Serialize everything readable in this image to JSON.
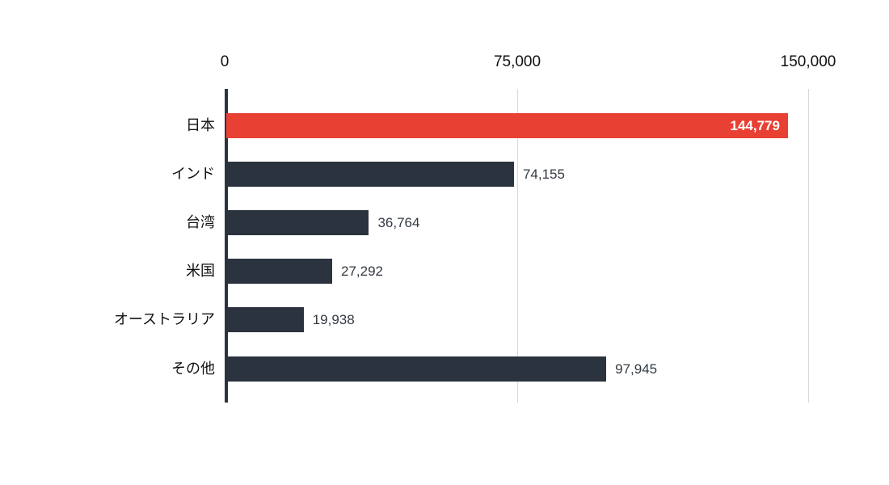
{
  "chart_data": {
    "type": "bar",
    "orientation": "horizontal",
    "title": "",
    "categories": [
      "日本",
      "インド",
      "台湾",
      "米国",
      "オーストラリア",
      "その他"
    ],
    "values": [
      144779,
      74155,
      36764,
      27292,
      19938,
      97945
    ],
    "value_labels": [
      "144,779",
      "74,155",
      "36,764",
      "27,292",
      "19,938",
      "97,945"
    ],
    "highlight_index": 0,
    "xlim": [
      0,
      150000
    ],
    "x_axis_position": "top",
    "x_ticks": [
      {
        "value": 0,
        "label": "0"
      },
      {
        "value": 75000,
        "label": "75,000"
      },
      {
        "value": 150000,
        "label": "150,000"
      }
    ],
    "grid": true,
    "legend": "none",
    "colors": {
      "highlight_bar": "#e94034",
      "bar": "#2b333e",
      "highlight_value_text": "#ffffff",
      "value_text": "#333a42",
      "category_text": "#111111",
      "tick_text": "#111111",
      "axis_line": "#2b333e",
      "gridline": "#d9d9d9",
      "tickmark": "#c9c9c9",
      "background": "#ffffff"
    }
  }
}
